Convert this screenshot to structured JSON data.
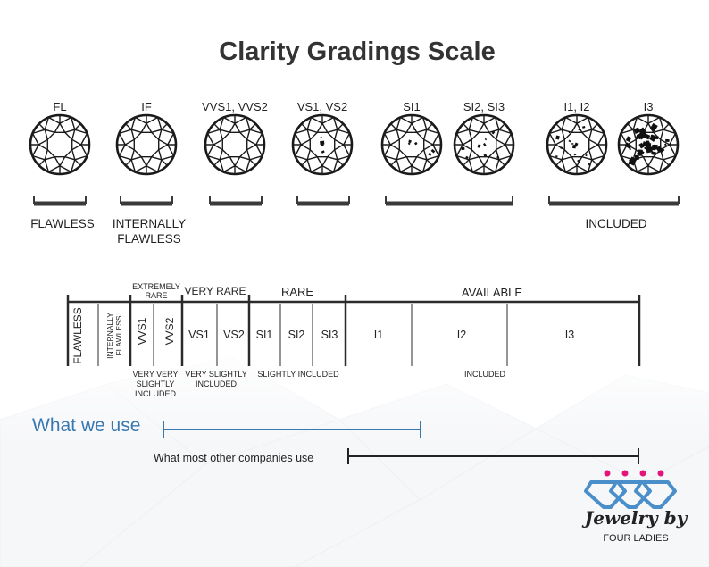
{
  "title": "Clarity Gradings Scale",
  "grades": [
    {
      "label": "FL",
      "inclusions": 0
    },
    {
      "label": "IF",
      "inclusions": 0
    },
    {
      "label": "VVS1, VVS2",
      "inclusions": 0
    },
    {
      "label": "VS1, VS2",
      "inclusions": 4
    },
    {
      "label": "SI1",
      "inclusions": 6
    },
    {
      "label": "SI2, SI3",
      "inclusions": 10
    },
    {
      "label": "I1, I2",
      "inclusions": 14
    },
    {
      "label": "I3",
      "inclusions": 40
    }
  ],
  "buckets": [
    {
      "label": "FLAWLESS"
    },
    {
      "label": "INTERNALLY FLAWLESS"
    },
    {
      "label": ""
    },
    {
      "label": ""
    },
    {
      "label": ""
    },
    {
      "label": "INCLUDED"
    }
  ],
  "scale": {
    "groups": {
      "extremely_rare": "EXTREMELY RARE",
      "very_rare": "VERY RARE",
      "rare": "RARE",
      "available": "AVAILABLE"
    },
    "cells": {
      "flawless": "FLAWLESS",
      "internally_flawless": "INTERNALLY FLAWLESS",
      "vvs1": "VVS1",
      "vvs2": "VVS2",
      "vs1": "VS1",
      "vs2": "VS2",
      "si1": "SI1",
      "si2": "SI2",
      "si3": "SI3",
      "i1": "I1",
      "i2": "I2",
      "i3": "I3"
    },
    "sublabels": {
      "vvs": "VERY VERY SLIGHTLY INCLUDED",
      "vs": "VERY SLIGHTLY INCLUDED",
      "si": "SLIGHTLY INCLUDED",
      "included": "INCLUDED"
    }
  },
  "ranges": {
    "what_we_use": "What we use",
    "others": "What most other companies use"
  },
  "colors": {
    "accent": "#3a78b0",
    "logo_blue": "#4a8fc9",
    "logo_pink": "#e3157a",
    "ink": "#2b2b2b"
  },
  "logo": {
    "icon": "diamond-chain-logo-icon",
    "text": "Jewelry by",
    "subtext": "FOUR LADIES"
  }
}
